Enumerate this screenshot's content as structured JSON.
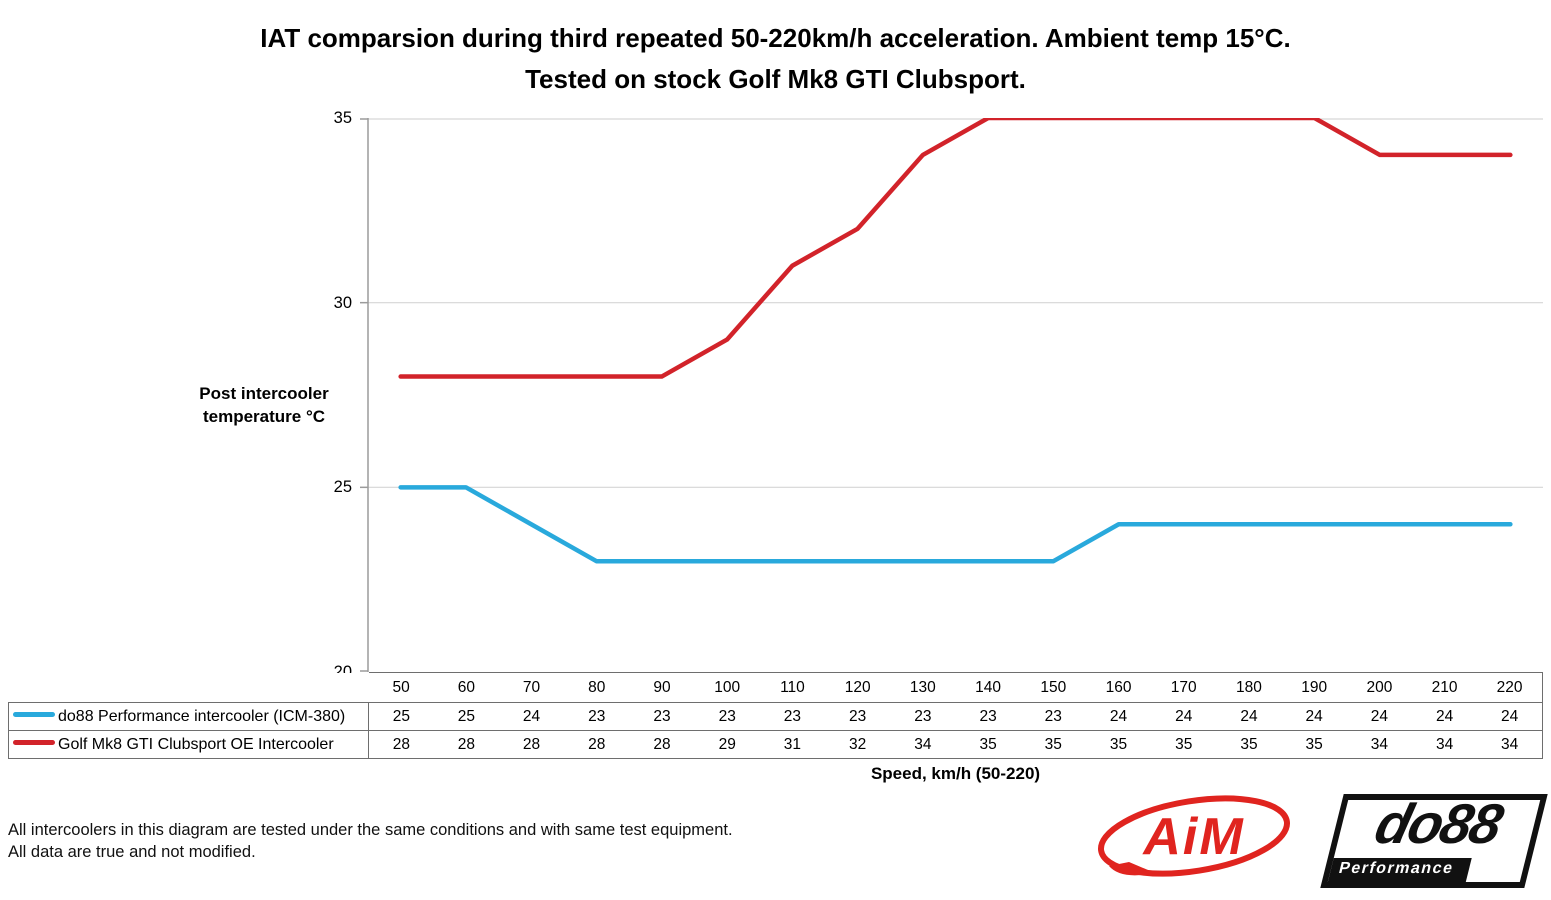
{
  "title": {
    "line1": "IAT comparsion during third repeated 50-220km/h acceleration. Ambient temp 15°C.",
    "line2": "Tested on stock Golf Mk8 GTI Clubsport."
  },
  "y_axis": {
    "title_line1": "Post intercooler",
    "title_line2": "temperature °C"
  },
  "x_axis": {
    "title": "Speed, km/h (50-220)"
  },
  "chart_data": {
    "type": "line",
    "categories": [
      50,
      60,
      70,
      80,
      90,
      100,
      110,
      120,
      130,
      140,
      150,
      160,
      170,
      180,
      190,
      200,
      210,
      220
    ],
    "series": [
      {
        "name": "do88 Performance intercooler (ICM-380)",
        "color": "#29A9DC",
        "values": [
          25,
          25,
          24,
          23,
          23,
          23,
          23,
          23,
          23,
          23,
          23,
          24,
          24,
          24,
          24,
          24,
          24,
          24
        ]
      },
      {
        "name": "Golf Mk8 GTI Clubsport OE Intercooler",
        "color": "#D2232A",
        "values": [
          28,
          28,
          28,
          28,
          28,
          29,
          31,
          32,
          34,
          35,
          35,
          35,
          35,
          35,
          35,
          34,
          34,
          34
        ]
      }
    ],
    "ylim": [
      20,
      35
    ],
    "yticks": [
      20,
      25,
      30,
      35
    ],
    "grid": "horizontal-major",
    "legend_position": "table-left",
    "xlabel": "Speed, km/h (50-220)",
    "ylabel": "Post intercooler temperature °C"
  },
  "footer": {
    "line1": "All intercoolers in this diagram are tested under the same conditions and with same test equipment.",
    "line2": "All data are true and not modified."
  },
  "logos": {
    "aim_text": "AiM",
    "do88_text": "do88",
    "do88_sub": "Performance"
  },
  "colors": {
    "series_blue": "#29A9DC",
    "series_red": "#D2232A",
    "gridline": "#d6d6d6",
    "axis": "#9b9b9b",
    "table_border": "#6e6e6e",
    "logo_red": "#E0241F",
    "logo_black": "#111111"
  }
}
